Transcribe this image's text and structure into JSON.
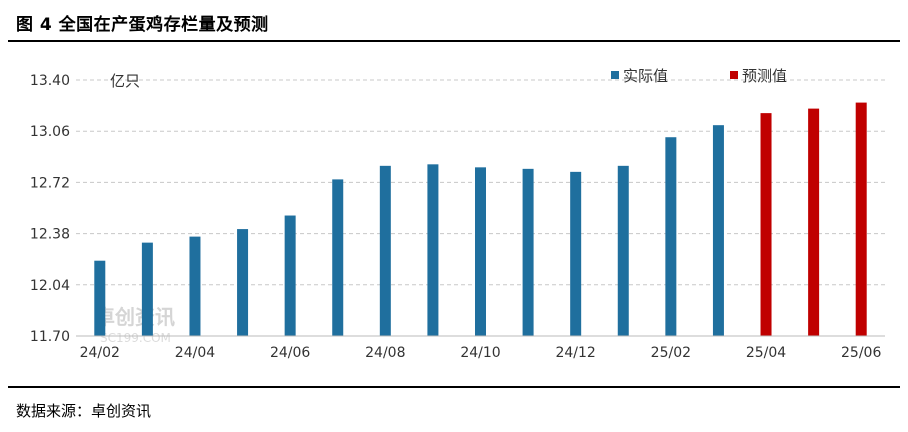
{
  "title": "图 4  全国在产蛋鸡存栏量及预测",
  "source": "数据来源：卓创资讯",
  "watermark": {
    "main": "卓创资讯",
    "sub": "SC199.COM"
  },
  "chart_data": {
    "type": "bar",
    "unit_label": "亿只",
    "ylim": [
      11.7,
      13.4
    ],
    "yticks": [
      "11.70",
      "12.04",
      "12.38",
      "12.72",
      "13.06",
      "13.40"
    ],
    "categories": [
      "24/02",
      "24/03",
      "24/04",
      "24/05",
      "24/06",
      "24/07",
      "24/08",
      "24/09",
      "24/10",
      "24/11",
      "24/12",
      "25/01",
      "25/02",
      "25/03",
      "25/04",
      "25/05",
      "25/06"
    ],
    "xtick_labels": [
      "24/02",
      "24/04",
      "24/06",
      "24/08",
      "24/10",
      "24/12",
      "25/02",
      "25/04",
      "25/06"
    ],
    "series": [
      {
        "name": "实际值",
        "color": "#1f6f9e",
        "values": [
          12.2,
          12.32,
          12.36,
          12.41,
          12.5,
          12.74,
          12.83,
          12.84,
          12.82,
          12.81,
          12.79,
          12.83,
          13.02,
          13.1,
          null,
          null,
          null
        ]
      },
      {
        "name": "预测值",
        "color": "#c00000",
        "values": [
          null,
          null,
          null,
          null,
          null,
          null,
          null,
          null,
          null,
          null,
          null,
          null,
          null,
          null,
          13.18,
          13.21,
          13.25
        ]
      }
    ],
    "grid": true,
    "legend": "top-right"
  }
}
